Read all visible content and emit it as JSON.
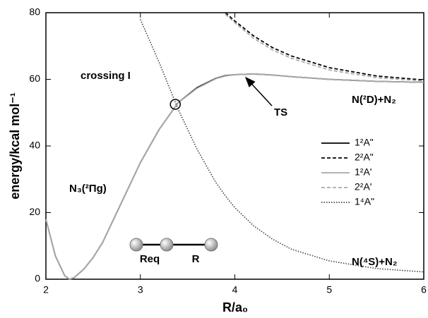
{
  "chart_data": {
    "type": "line",
    "xlabel": "R/a₀",
    "ylabel": "energy/kcal mol⁻¹",
    "x": [
      2.0,
      2.1,
      2.2,
      2.25,
      2.3,
      2.4,
      2.5,
      2.6,
      2.8,
      3.0,
      3.2,
      3.4,
      3.6,
      3.8,
      3.9,
      4.0,
      4.2,
      4.4,
      4.6,
      5.0,
      5.5,
      6.0
    ],
    "series": [
      {
        "name": "1²A\"",
        "color": "#000000",
        "dash": "solid",
        "values": [
          18,
          7,
          1,
          0,
          0.5,
          3,
          6.5,
          11,
          23,
          35,
          45,
          53,
          57.5,
          60.3,
          61.1,
          61.4,
          61.6,
          61.3,
          60.8,
          60,
          59.4,
          59.1
        ]
      },
      {
        "name": "2²A\"",
        "color": "#000000",
        "dash": "dashed",
        "values": [
          null,
          null,
          null,
          null,
          null,
          null,
          null,
          null,
          null,
          null,
          null,
          null,
          null,
          null,
          80,
          77.5,
          73,
          69.5,
          67,
          63.5,
          61,
          59.8
        ]
      },
      {
        "name": "1²A'",
        "color": "#aaaaaa",
        "dash": "solid",
        "values": [
          18,
          7,
          1,
          0,
          0.5,
          3,
          6.5,
          11,
          23,
          35,
          45,
          53,
          57.3,
          60.2,
          61,
          61.4,
          61.6,
          61.3,
          60.8,
          60,
          59.4,
          59.1
        ]
      },
      {
        "name": "2²A'",
        "color": "#aaaaaa",
        "dash": "dashed",
        "values": [
          null,
          null,
          null,
          null,
          null,
          null,
          null,
          null,
          null,
          null,
          null,
          null,
          null,
          null,
          79.5,
          77,
          72.3,
          68.8,
          66.3,
          62.8,
          60.5,
          59.5
        ]
      },
      {
        "name": "1⁴A\"",
        "color": "#444444",
        "dash": "dotted",
        "values": [
          null,
          null,
          null,
          null,
          null,
          null,
          null,
          null,
          null,
          78,
          65,
          51,
          39,
          29,
          25,
          21.5,
          16,
          12,
          9,
          5.5,
          3.2,
          2.2
        ]
      }
    ],
    "crossing_point": {
      "x": 3.37,
      "y": 52.5
    },
    "annotations": [
      "crossing I",
      "TS",
      "N(²D)+N₂",
      "N(⁴S)+N₂",
      "N₃(²Πg)"
    ],
    "diagram_labels": [
      "Req",
      "R"
    ],
    "xlim": [
      2,
      6
    ],
    "xticks": [
      2,
      3,
      4,
      5,
      6
    ],
    "ylim": [
      0,
      80
    ],
    "yticks": [
      0,
      20,
      40,
      60,
      80
    ],
    "grid": false,
    "legend": "right"
  }
}
